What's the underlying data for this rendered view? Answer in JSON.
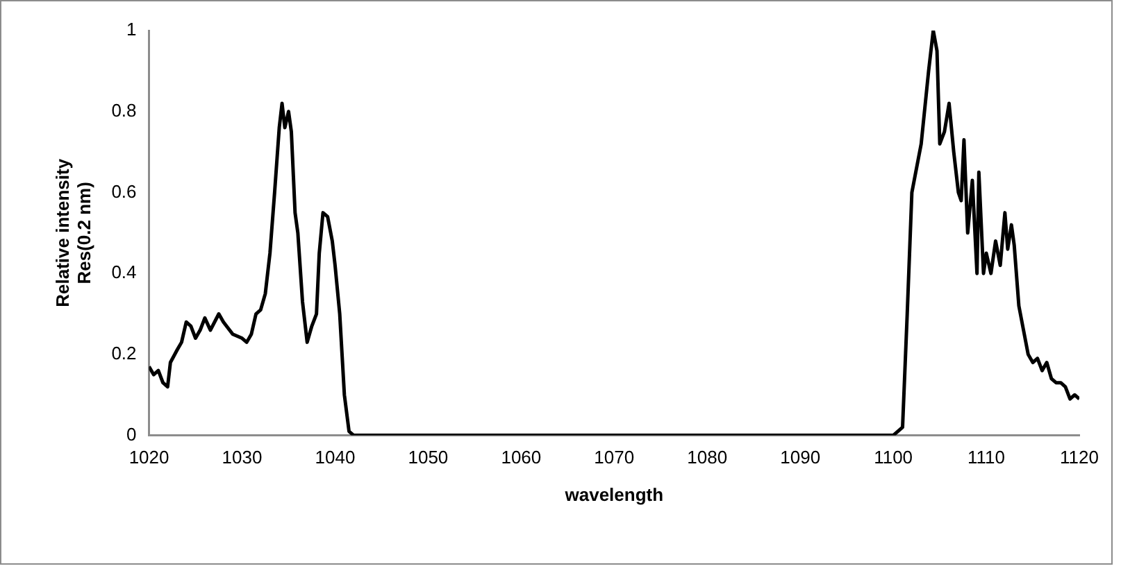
{
  "chart_data": {
    "type": "line",
    "xlabel": "wavelength",
    "ylabel": [
      "Relative intensity",
      "Res(0.2 nm)"
    ],
    "xlim": [
      1020,
      1120
    ],
    "xticks": [
      1020,
      1030,
      1040,
      1050,
      1060,
      1070,
      1080,
      1090,
      1100,
      1110,
      1120
    ],
    "ylim": [
      0,
      1
    ],
    "yticks": [
      0,
      0.2,
      0.4,
      0.6,
      0.8,
      1
    ],
    "grid": false,
    "legend": false,
    "marker": "none",
    "line_style": "solid",
    "series": [
      {
        "color": "#000000",
        "x": [
          1020,
          1020.5,
          1021,
          1021.5,
          1022,
          1022.3,
          1023,
          1023.5,
          1024,
          1024.5,
          1025,
          1025.5,
          1026,
          1026.6,
          1027.5,
          1028,
          1029,
          1030,
          1030.5,
          1031,
          1031.5,
          1032,
          1032.5,
          1033,
          1033.5,
          1034,
          1034.3,
          1034.6,
          1035,
          1035.3,
          1035.7,
          1036,
          1036.5,
          1037,
          1037.5,
          1038,
          1038.3,
          1038.7,
          1039.2,
          1039.7,
          1040,
          1040.5,
          1041,
          1041.5,
          1042,
          1100,
          1101,
          1101.5,
          1102,
          1103,
          1103.8,
          1104.3,
          1104.7,
          1105,
          1105.5,
          1106,
          1106.5,
          1107,
          1107.3,
          1107.6,
          1108,
          1108.5,
          1109,
          1109.2,
          1109.7,
          1110,
          1110.5,
          1111,
          1111.5,
          1112,
          1112.3,
          1112.7,
          1113,
          1113.5,
          1114,
          1114.5,
          1115,
          1115.5,
          1116,
          1116.5,
          1117,
          1117.5,
          1118,
          1118.5,
          1119,
          1119.5,
          1120
        ],
        "values": [
          0.17,
          0.15,
          0.16,
          0.13,
          0.12,
          0.18,
          0.21,
          0.23,
          0.28,
          0.27,
          0.24,
          0.26,
          0.29,
          0.26,
          0.3,
          0.28,
          0.25,
          0.24,
          0.23,
          0.25,
          0.3,
          0.31,
          0.35,
          0.45,
          0.6,
          0.76,
          0.82,
          0.76,
          0.8,
          0.75,
          0.55,
          0.5,
          0.33,
          0.23,
          0.27,
          0.3,
          0.45,
          0.55,
          0.54,
          0.48,
          0.42,
          0.3,
          0.1,
          0.01,
          0,
          0,
          0.02,
          0.3,
          0.6,
          0.72,
          0.9,
          1,
          0.95,
          0.72,
          0.75,
          0.82,
          0.7,
          0.6,
          0.58,
          0.73,
          0.5,
          0.63,
          0.4,
          0.65,
          0.4,
          0.45,
          0.4,
          0.48,
          0.42,
          0.55,
          0.46,
          0.52,
          0.47,
          0.32,
          0.26,
          0.2,
          0.18,
          0.19,
          0.16,
          0.18,
          0.14,
          0.13,
          0.13,
          0.12,
          0.09,
          0.1,
          0.09
        ]
      }
    ]
  }
}
